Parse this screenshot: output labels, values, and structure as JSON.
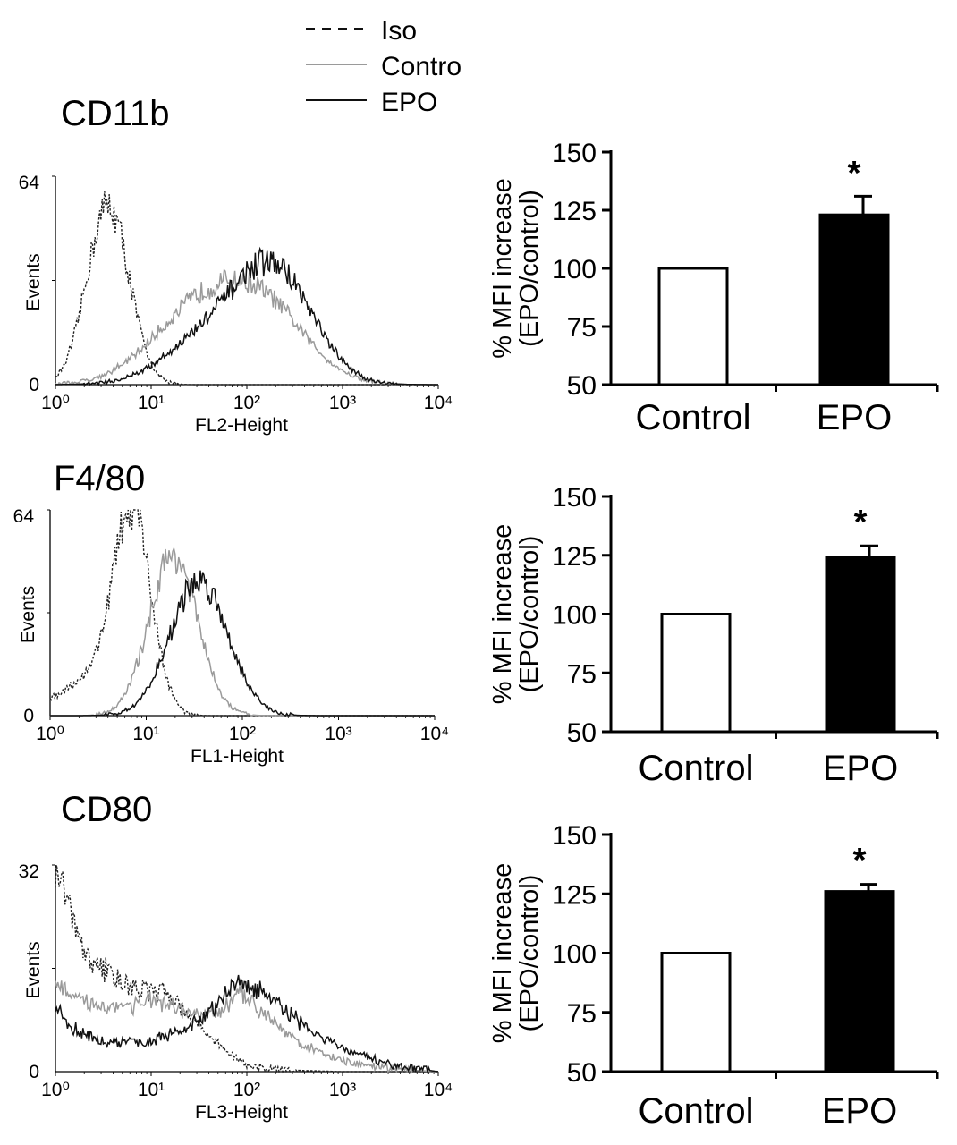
{
  "legend": {
    "items": [
      {
        "label": "Iso",
        "style": "dashed",
        "color": "#111111"
      },
      {
        "label": "Contro",
        "style": "solid",
        "color": "#9a9a9a"
      },
      {
        "label": "EPO",
        "style": "solid",
        "color": "#111111"
      }
    ]
  },
  "colors": {
    "iso": "#222222",
    "control": "#9a9a9a",
    "epo": "#111111",
    "bar_epo": "#000000",
    "bar_control": "#ffffff"
  },
  "chart_data": [
    {
      "type": "line",
      "title": "CD11b",
      "xlabel": "FL2-Height",
      "ylabel": "Events",
      "xscale": "log",
      "xlim": [
        1,
        10000
      ],
      "ylim": [
        0,
        64
      ],
      "xtick_labels": [
        "10⁰",
        "10¹",
        "10²",
        "10³",
        "10⁴"
      ],
      "ytick_labels": [
        "0",
        "64"
      ],
      "series": [
        {
          "name": "Iso",
          "style": "dashed",
          "peaks": [
            {
              "center_log": 0.55,
              "height": 55,
              "width": 0.22
            }
          ]
        },
        {
          "name": "Contro",
          "style": "solid",
          "peaks": [
            {
              "center_log": 1.5,
              "height": 22,
              "width": 0.5
            },
            {
              "center_log": 2.2,
              "height": 20,
              "width": 0.45
            }
          ]
        },
        {
          "name": "EPO",
          "style": "solid",
          "peaks": [
            {
              "center_log": 1.6,
              "height": 14,
              "width": 0.45
            },
            {
              "center_log": 2.3,
              "height": 33,
              "width": 0.4
            }
          ]
        }
      ]
    },
    {
      "type": "bar",
      "categories": [
        "Control",
        "EPO"
      ],
      "values": [
        100,
        123
      ],
      "errors": [
        0,
        8
      ],
      "significance": [
        "",
        "*"
      ],
      "ylabel": "% MFI increase\n(EPO/control)",
      "ylim": [
        50,
        150
      ],
      "yticks": [
        50,
        75,
        100,
        125,
        150
      ]
    },
    {
      "type": "line",
      "title": "F4/80",
      "xlabel": "FL1-Height",
      "ylabel": "Events",
      "xscale": "log",
      "xlim": [
        1,
        10000
      ],
      "ylim": [
        0,
        64
      ],
      "xtick_labels": [
        "10⁰",
        "10¹",
        "10²",
        "10³",
        "10⁴"
      ],
      "ytick_labels": [
        "0",
        "64"
      ],
      "series": [
        {
          "name": "Iso",
          "style": "dashed",
          "peaks": [
            {
              "center_log": 0.85,
              "height": 62,
              "width": 0.2
            },
            {
              "center_log": 0.35,
              "height": 10,
              "width": 0.3
            }
          ]
        },
        {
          "name": "Contro",
          "style": "solid",
          "peaks": [
            {
              "center_log": 1.28,
              "height": 50,
              "width": 0.25
            }
          ]
        },
        {
          "name": "EPO",
          "style": "solid",
          "peaks": [
            {
              "center_log": 1.55,
              "height": 42,
              "width": 0.3
            }
          ]
        }
      ]
    },
    {
      "type": "bar",
      "categories": [
        "Control",
        "EPO"
      ],
      "values": [
        100,
        124
      ],
      "errors": [
        0,
        5
      ],
      "significance": [
        "",
        "*"
      ],
      "ylabel": "% MFI increase\n(EPO/control)",
      "ylim": [
        50,
        150
      ],
      "yticks": [
        50,
        75,
        100,
        125,
        150
      ]
    },
    {
      "type": "line",
      "title": "CD80",
      "xlabel": "FL3-Height",
      "ylabel": "Events",
      "xscale": "log",
      "xlim": [
        1,
        10000
      ],
      "ylim": [
        0,
        32
      ],
      "xtick_labels": [
        "10⁰",
        "10¹",
        "10²",
        "10³",
        "10⁴"
      ],
      "ytick_labels": [
        "0",
        "32"
      ],
      "series": [
        {
          "name": "Iso",
          "style": "dashed",
          "base": [
            [
              0,
              32
            ],
            [
              0.3,
              18
            ],
            [
              0.8,
              13
            ],
            [
              1.2,
              12
            ],
            [
              1.5,
              7
            ],
            [
              1.8,
              3
            ],
            [
              2.0,
              1
            ],
            [
              2.3,
              0.3
            ],
            [
              3.0,
              0
            ]
          ]
        },
        {
          "name": "Contro",
          "style": "solid",
          "base": [
            [
              0,
              14
            ],
            [
              0.2,
              11
            ],
            [
              0.6,
              10
            ],
            [
              1.0,
              11
            ],
            [
              1.4,
              9
            ],
            [
              1.7,
              9
            ],
            [
              1.95,
              12
            ],
            [
              2.2,
              9
            ],
            [
              2.6,
              4
            ],
            [
              3.0,
              1.5
            ],
            [
              3.5,
              0.4
            ],
            [
              4.0,
              0
            ]
          ]
        },
        {
          "name": "EPO",
          "style": "solid",
          "base": [
            [
              0,
              10
            ],
            [
              0.15,
              7
            ],
            [
              0.5,
              4.5
            ],
            [
              0.9,
              4.5
            ],
            [
              1.3,
              6
            ],
            [
              1.6,
              9
            ],
            [
              1.9,
              14
            ],
            [
              2.2,
              12
            ],
            [
              2.6,
              7
            ],
            [
              3.0,
              3.5
            ],
            [
              3.5,
              1
            ],
            [
              4.0,
              0
            ]
          ]
        }
      ]
    },
    {
      "type": "bar",
      "categories": [
        "Control",
        "EPO"
      ],
      "values": [
        100,
        126
      ],
      "errors": [
        0,
        3
      ],
      "significance": [
        "",
        "*"
      ],
      "ylabel": "% MFI increase\n(EPO/control)",
      "ylim": [
        50,
        150
      ],
      "yticks": [
        50,
        75,
        100,
        125,
        150
      ]
    }
  ]
}
